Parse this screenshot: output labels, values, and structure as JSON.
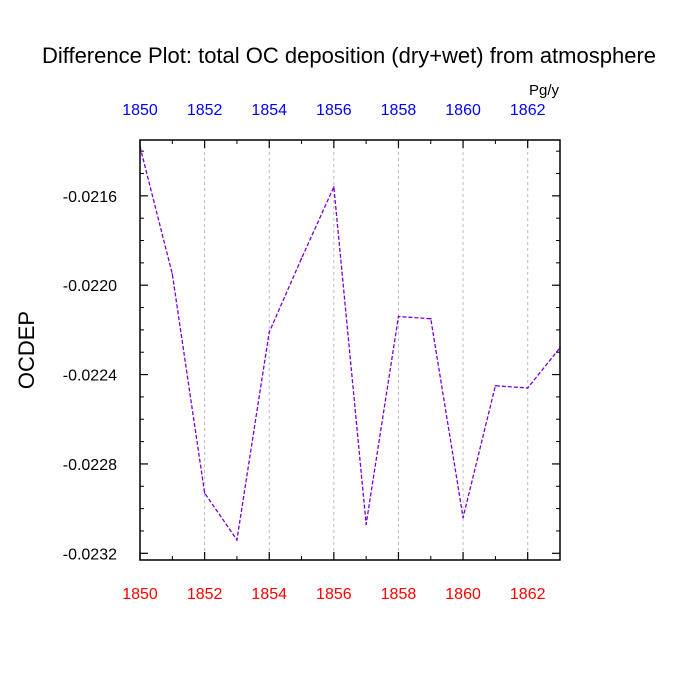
{
  "chart_data": {
    "type": "line",
    "title": "Difference Plot: total OC deposition (dry+wet) from atmosphere",
    "units": "Pg/y",
    "ylabel": "OCDEP",
    "xlabel": "",
    "x": [
      1850,
      1851,
      1852,
      1853,
      1854,
      1855,
      1856,
      1857,
      1858,
      1859,
      1860,
      1861,
      1862,
      1863
    ],
    "series": [
      {
        "values": [
          -0.02138,
          -0.02195,
          -0.02293,
          -0.02314,
          -0.02221,
          -0.02188,
          -0.02156,
          -0.02307,
          -0.02214,
          -0.02215,
          -0.02304,
          -0.02245,
          -0.02246,
          -0.02228
        ]
      }
    ],
    "xlim": [
      1850,
      1863
    ],
    "ylim": [
      -0.02323,
      -0.02135
    ],
    "xticks": [
      1850,
      1852,
      1854,
      1856,
      1858,
      1860,
      1862
    ],
    "xtick_labels": [
      "1850",
      "1852",
      "1854",
      "1856",
      "1858",
      "1860",
      "1862"
    ],
    "top_xtick_labels": [
      "1850",
      "1852",
      "1854",
      "1856",
      "1858",
      "1860",
      "1862"
    ],
    "yticks": [
      -0.0216,
      -0.022,
      -0.0224,
      -0.0228,
      -0.0232
    ],
    "ytick_labels": [
      "-0.0216",
      "-0.0220",
      "-0.0224",
      "-0.0228",
      "-0.0232"
    ],
    "grid": "vertical dashed",
    "colors": {
      "line": "#7a00d6",
      "bottom_ticks": "#ff0000",
      "top_ticks": "#0000ff",
      "axis": "#000000",
      "grid": "#bbbbbb"
    }
  }
}
